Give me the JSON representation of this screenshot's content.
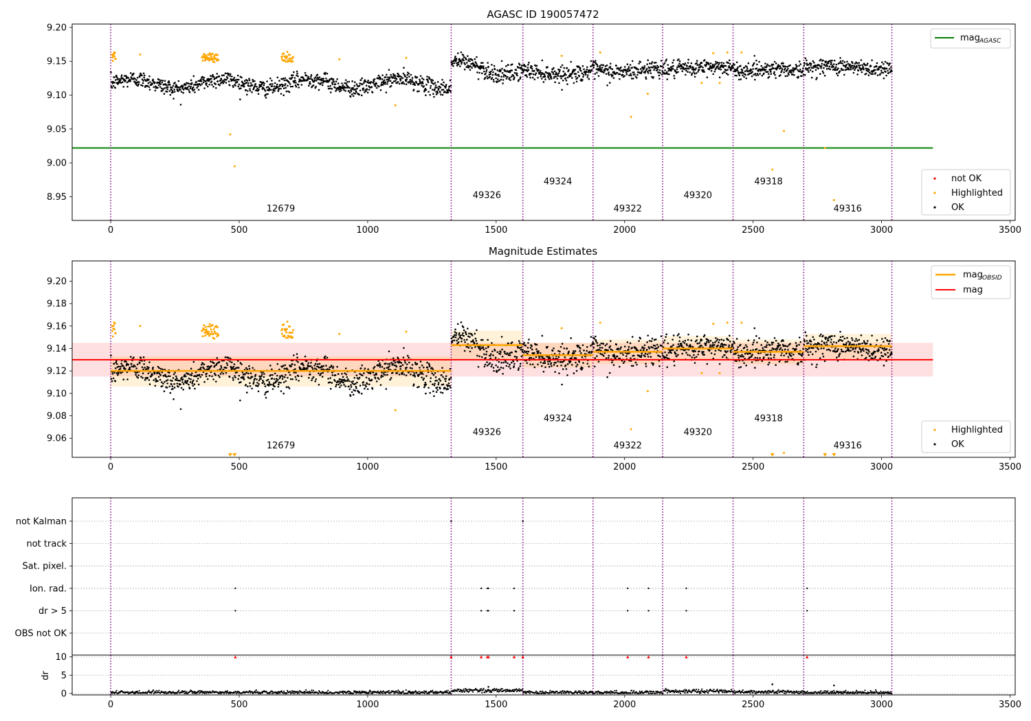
{
  "chart_data": [
    {
      "type": "scatter",
      "title": "AGASC ID 190057472",
      "xlabel": "",
      "ylabel": "",
      "xlim": [
        -150,
        3520
      ],
      "ylim": [
        8.915,
        9.205
      ],
      "xticks": [
        0,
        500,
        1000,
        1500,
        2000,
        2500,
        3000,
        3500
      ],
      "yticks": [
        8.95,
        9.0,
        9.05,
        9.1,
        9.15,
        9.2
      ],
      "ytick_decimals": 2,
      "obs_boundaries": [
        0,
        1325,
        1604,
        1877,
        2148,
        2422,
        2697,
        3040
      ],
      "obsid_labels": [
        {
          "text": "12679",
          "x": 662,
          "y": 8.928
        },
        {
          "text": "49326",
          "x": 1464,
          "y": 8.948
        },
        {
          "text": "49324",
          "x": 1740,
          "y": 8.968
        },
        {
          "text": "49322",
          "x": 2012,
          "y": 8.928
        },
        {
          "text": "49320",
          "x": 2285,
          "y": 8.948
        },
        {
          "text": "49318",
          "x": 2560,
          "y": 8.968
        },
        {
          "text": "49316",
          "x": 2868,
          "y": 8.928
        }
      ],
      "lines": [
        {
          "name": "mag_AGASC",
          "legend_main": "mag",
          "legend_sub": "AGASC",
          "x": [
            -150,
            3200
          ],
          "y": [
            9.022,
            9.022
          ],
          "color": "#008000"
        }
      ],
      "segments": [
        {
          "x0": 0,
          "x1": 1325,
          "mean": 9.117,
          "amp": 0.007,
          "noise": 0.008
        },
        {
          "x0": 1325,
          "x1": 1604,
          "mean": 9.14,
          "amp": 0.01,
          "noise": 0.009
        },
        {
          "x0": 1604,
          "x1": 1877,
          "mean": 9.134,
          "amp": 0.003,
          "noise": 0.008
        },
        {
          "x0": 1877,
          "x1": 2148,
          "mean": 9.137,
          "amp": 0.003,
          "noise": 0.009
        },
        {
          "x0": 2148,
          "x1": 2422,
          "mean": 9.14,
          "amp": 0.002,
          "noise": 0.008
        },
        {
          "x0": 2422,
          "x1": 2697,
          "mean": 9.137,
          "amp": 0.002,
          "noise": 0.008
        },
        {
          "x0": 2697,
          "x1": 3040,
          "mean": 9.141,
          "amp": 0.002,
          "noise": 0.008
        }
      ],
      "highlight_clusters": [
        {
          "x0": 5,
          "x1": 20,
          "y": 9.157
        },
        {
          "x0": 355,
          "x1": 420,
          "y": 9.155
        },
        {
          "x0": 665,
          "x1": 710,
          "y": 9.155
        }
      ],
      "highlighted_points": [
        {
          "x": 115,
          "y": 9.16
        },
        {
          "x": 465,
          "y": 9.042
        },
        {
          "x": 482,
          "y": 8.995
        },
        {
          "x": 890,
          "y": 9.153
        },
        {
          "x": 1108,
          "y": 9.085
        },
        {
          "x": 1150,
          "y": 9.155
        },
        {
          "x": 1755,
          "y": 9.158
        },
        {
          "x": 1905,
          "y": 9.163
        },
        {
          "x": 2025,
          "y": 9.068
        },
        {
          "x": 2090,
          "y": 9.102
        },
        {
          "x": 2300,
          "y": 9.118
        },
        {
          "x": 2345,
          "y": 9.162
        },
        {
          "x": 2370,
          "y": 9.118
        },
        {
          "x": 2400,
          "y": 9.163
        },
        {
          "x": 2455,
          "y": 9.163
        },
        {
          "x": 2575,
          "y": 8.99
        },
        {
          "x": 2620,
          "y": 9.047
        },
        {
          "x": 2780,
          "y": 9.022
        },
        {
          "x": 2815,
          "y": 8.945
        }
      ],
      "not_ok_points": [],
      "legends": [
        {
          "position": "upper right",
          "entries": [
            {
              "type": "line",
              "label_main": "mag",
              "label_sub": "AGASC",
              "color": "#008000"
            }
          ]
        },
        {
          "position": "lower right",
          "entries": [
            {
              "type": "dot",
              "label": "not OK",
              "color": "#ff0000"
            },
            {
              "type": "dot",
              "label": "Highlighted",
              "color": "#ffa500"
            },
            {
              "type": "dot",
              "label": "OK",
              "color": "#000000"
            }
          ]
        }
      ]
    },
    {
      "type": "scatter",
      "title": "Magnitude Estimates",
      "xlabel": "",
      "ylabel": "",
      "xlim": [
        -150,
        3520
      ],
      "ylim": [
        9.043,
        9.218
      ],
      "xticks": [
        0,
        500,
        1000,
        1500,
        2000,
        2500,
        3000,
        3500
      ],
      "yticks": [
        9.06,
        9.08,
        9.1,
        9.12,
        9.14,
        9.16,
        9.18,
        9.2
      ],
      "ytick_decimals": 2,
      "obs_boundaries": [
        0,
        1325,
        1604,
        1877,
        2148,
        2422,
        2697,
        3040
      ],
      "obsid_labels": [
        {
          "text": "12679",
          "x": 662,
          "y": 9.051
        },
        {
          "text": "49326",
          "x": 1464,
          "y": 9.063
        },
        {
          "text": "49324",
          "x": 1740,
          "y": 9.075
        },
        {
          "text": "49322",
          "x": 2012,
          "y": 9.051
        },
        {
          "text": "49320",
          "x": 2285,
          "y": 9.063
        },
        {
          "text": "49318",
          "x": 2560,
          "y": 9.075
        },
        {
          "text": "49316",
          "x": 2868,
          "y": 9.051
        }
      ],
      "mag": {
        "value": 9.13,
        "band": [
          9.115,
          9.145
        ],
        "x": [
          -150,
          3200
        ],
        "color": "#ff0000"
      },
      "mag_obsid": [
        {
          "x0": 0,
          "x1": 1325,
          "value": 9.12,
          "band": [
            9.106,
            9.133
          ]
        },
        {
          "x0": 1325,
          "x1": 1604,
          "value": 9.143,
          "band": [
            9.13,
            9.156
          ]
        },
        {
          "x0": 1604,
          "x1": 1877,
          "value": 9.134,
          "band": [
            9.123,
            9.145
          ]
        },
        {
          "x0": 1877,
          "x1": 2148,
          "value": 9.137,
          "band": [
            9.126,
            9.148
          ]
        },
        {
          "x0": 2148,
          "x1": 2422,
          "value": 9.14,
          "band": [
            9.129,
            9.151
          ]
        },
        {
          "x0": 2422,
          "x1": 2697,
          "value": 9.137,
          "band": [
            9.126,
            9.148
          ]
        },
        {
          "x0": 2697,
          "x1": 3040,
          "value": 9.142,
          "band": [
            9.131,
            9.153
          ]
        }
      ],
      "out_of_range_markers": [
        465,
        482,
        2575,
        2780,
        2815
      ],
      "legends": [
        {
          "position": "upper right",
          "entries": [
            {
              "type": "line",
              "label_main": "mag",
              "label_sub": "OBSID",
              "color": "#ffa500"
            },
            {
              "type": "line",
              "label_main": "mag",
              "label_sub": "",
              "color": "#ff0000"
            }
          ]
        },
        {
          "position": "lower right",
          "entries": [
            {
              "type": "dot",
              "label": "Highlighted",
              "color": "#ffa500"
            },
            {
              "type": "dot",
              "label": "OK",
              "color": "#000000"
            }
          ]
        }
      ]
    },
    {
      "type": "scatter",
      "title": "",
      "xlabel": "",
      "ylabel": "",
      "xlim": [
        -150,
        3520
      ],
      "categories": [
        "OBS not OK",
        "dr > 5",
        "Ion. rad.",
        "Sat. pixel.",
        "not track",
        "not Kalman"
      ],
      "flag_points": {
        "not Kalman": [
          1325,
          1604
        ],
        "not track": [],
        "Sat. pixel.": [],
        "Ion. rad.": [
          485,
          1442,
          1466,
          1470,
          1570,
          2012,
          2093,
          2240,
          2710
        ],
        "dr > 5": [
          485,
          1442,
          1466,
          1470,
          1570,
          2012,
          2093,
          2240,
          2710
        ],
        "OBS not OK": []
      },
      "obs_boundaries": [
        0,
        1325,
        1604,
        1877,
        2148,
        2422,
        2697,
        3040
      ]
    },
    {
      "type": "scatter",
      "title": "",
      "xlabel": "",
      "ylabel": "dr",
      "xlim": [
        -150,
        3520
      ],
      "ylim": [
        -0.4,
        10.5
      ],
      "xticks": [
        0,
        500,
        1000,
        1500,
        2000,
        2500,
        3000,
        3500
      ],
      "yticks": [
        0,
        5,
        10
      ],
      "ytick_decimals": 0,
      "clipped_markers": [
        485,
        1325,
        1442,
        1466,
        1470,
        1570,
        1604,
        2012,
        2093,
        2240,
        2710
      ],
      "dr_segments": [
        {
          "x0": 0,
          "x1": 1325,
          "mean": 0.3
        },
        {
          "x0": 1325,
          "x1": 1604,
          "mean": 0.8
        },
        {
          "x0": 1604,
          "x1": 1877,
          "mean": 0.3
        },
        {
          "x0": 1877,
          "x1": 2148,
          "mean": 0.2
        },
        {
          "x0": 2148,
          "x1": 2422,
          "mean": 0.6
        },
        {
          "x0": 2422,
          "x1": 2697,
          "mean": 0.4
        },
        {
          "x0": 2697,
          "x1": 3040,
          "mean": 0.2
        }
      ],
      "dr_extra_points": [
        {
          "x": 2575,
          "y": 2.5
        },
        {
          "x": 2815,
          "y": 2.2
        },
        {
          "x": 1470,
          "y": 1.8
        }
      ],
      "obs_boundaries": [
        0,
        1325,
        1604,
        1877,
        2148,
        2422,
        2697,
        3040
      ]
    }
  ]
}
